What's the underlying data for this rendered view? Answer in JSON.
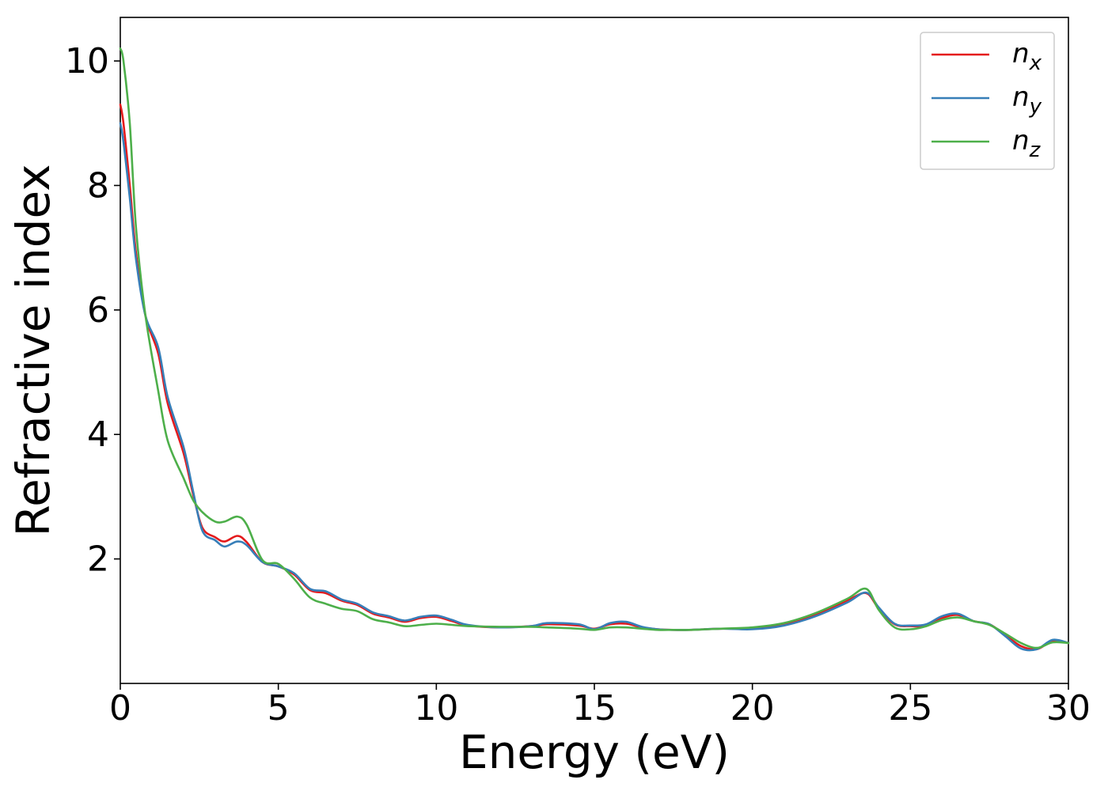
{
  "chart_data": {
    "type": "line",
    "title": "",
    "xlabel": "Energy (eV)",
    "ylabel": "Refractive index",
    "xlim": [
      0,
      30
    ],
    "ylim": [
      0,
      10.7
    ],
    "xticks": [
      0,
      5,
      10,
      15,
      20,
      25,
      30
    ],
    "yticks": [
      2,
      4,
      6,
      8,
      10
    ],
    "grid": false,
    "legend_position": "top-right",
    "series": [
      {
        "name": "n_x",
        "legend_base": "n",
        "legend_sub": "x",
        "color": "#e41a1c",
        "x": [
          0,
          0.1,
          0.3,
          0.5,
          0.8,
          1.2,
          1.5,
          2.0,
          2.3,
          2.6,
          3.0,
          3.3,
          3.7,
          4.0,
          4.5,
          5.0,
          5.5,
          6.0,
          6.5,
          7.0,
          7.5,
          8.0,
          8.5,
          9.0,
          9.5,
          10.0,
          10.5,
          11.0,
          12.0,
          13.0,
          13.5,
          14.5,
          15.0,
          15.5,
          16.0,
          16.5,
          17.0,
          17.5,
          18.0,
          19.0,
          20.0,
          21.0,
          22.0,
          23.0,
          23.6,
          24.0,
          24.5,
          25.0,
          25.5,
          26.0,
          26.5,
          27.0,
          27.5,
          28.0,
          28.5,
          29.0,
          29.5,
          30.0
        ],
        "y": [
          9.3,
          9.0,
          8.0,
          6.9,
          5.9,
          5.3,
          4.5,
          3.7,
          3.05,
          2.5,
          2.35,
          2.28,
          2.37,
          2.27,
          1.95,
          1.88,
          1.75,
          1.5,
          1.45,
          1.33,
          1.26,
          1.12,
          1.06,
          0.99,
          1.05,
          1.07,
          1.0,
          0.93,
          0.9,
          0.92,
          0.95,
          0.93,
          0.88,
          0.95,
          0.96,
          0.9,
          0.87,
          0.86,
          0.86,
          0.88,
          0.88,
          0.95,
          1.1,
          1.33,
          1.45,
          1.2,
          0.95,
          0.92,
          0.93,
          1.05,
          1.1,
          1.0,
          0.95,
          0.78,
          0.6,
          0.55,
          0.68,
          0.65
        ]
      },
      {
        "name": "n_y",
        "legend_base": "n",
        "legend_sub": "y",
        "color": "#377eb8",
        "x": [
          0,
          0.1,
          0.3,
          0.5,
          0.8,
          1.2,
          1.5,
          2.0,
          2.3,
          2.6,
          3.0,
          3.3,
          3.7,
          4.0,
          4.5,
          5.0,
          5.5,
          6.0,
          6.5,
          7.0,
          7.5,
          8.0,
          8.5,
          9.0,
          9.5,
          10.0,
          10.5,
          11.0,
          12.0,
          13.0,
          13.5,
          14.5,
          15.0,
          15.5,
          16.0,
          16.5,
          17.0,
          17.5,
          18.0,
          19.0,
          20.0,
          21.0,
          22.0,
          23.0,
          23.6,
          24.0,
          24.5,
          25.0,
          25.5,
          26.0,
          26.5,
          27.0,
          27.5,
          28.0,
          28.5,
          29.0,
          29.5,
          30.0
        ],
        "y": [
          9.0,
          8.7,
          7.8,
          6.8,
          5.9,
          5.4,
          4.6,
          3.8,
          3.1,
          2.45,
          2.3,
          2.2,
          2.28,
          2.22,
          1.95,
          1.88,
          1.77,
          1.52,
          1.48,
          1.35,
          1.28,
          1.14,
          1.08,
          1.01,
          1.07,
          1.09,
          1.02,
          0.94,
          0.9,
          0.92,
          0.97,
          0.95,
          0.87,
          0.97,
          0.99,
          0.91,
          0.87,
          0.86,
          0.86,
          0.88,
          0.87,
          0.93,
          1.08,
          1.3,
          1.46,
          1.22,
          0.96,
          0.93,
          0.95,
          1.08,
          1.12,
          1.0,
          0.95,
          0.76,
          0.56,
          0.55,
          0.7,
          0.65
        ]
      },
      {
        "name": "n_z",
        "legend_base": "n",
        "legend_sub": "z",
        "color": "#4daf4a",
        "x": [
          0,
          0.1,
          0.3,
          0.5,
          0.8,
          1.2,
          1.5,
          2.0,
          2.3,
          2.6,
          3.0,
          3.3,
          3.7,
          4.0,
          4.5,
          5.0,
          5.5,
          6.0,
          6.5,
          7.0,
          7.5,
          8.0,
          8.5,
          9.0,
          9.5,
          10.0,
          10.5,
          11.0,
          12.0,
          13.0,
          13.5,
          14.5,
          15.0,
          15.5,
          16.0,
          16.5,
          17.0,
          17.5,
          18.0,
          19.0,
          20.0,
          21.0,
          22.0,
          23.0,
          23.6,
          24.0,
          24.5,
          25.0,
          25.5,
          26.0,
          26.5,
          27.0,
          27.5,
          28.0,
          28.5,
          29.0,
          29.5,
          30.0
        ],
        "y": [
          10.2,
          10.0,
          9.0,
          7.3,
          5.9,
          4.7,
          3.9,
          3.3,
          2.95,
          2.75,
          2.6,
          2.6,
          2.68,
          2.55,
          1.98,
          1.92,
          1.68,
          1.38,
          1.28,
          1.2,
          1.16,
          1.03,
          0.98,
          0.92,
          0.94,
          0.96,
          0.94,
          0.92,
          0.91,
          0.91,
          0.9,
          0.88,
          0.86,
          0.9,
          0.9,
          0.88,
          0.86,
          0.86,
          0.86,
          0.88,
          0.9,
          0.97,
          1.13,
          1.36,
          1.52,
          1.18,
          0.9,
          0.87,
          0.92,
          1.02,
          1.06,
          1.0,
          0.94,
          0.8,
          0.65,
          0.57,
          0.66,
          0.65
        ]
      }
    ]
  }
}
